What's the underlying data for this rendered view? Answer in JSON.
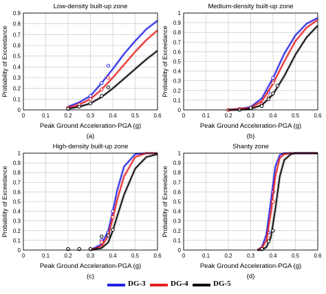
{
  "chart_data": [
    {
      "type": "line",
      "title": "Low-density built-up zone",
      "xlabel": "Peak Ground Acceleration-PGA (g)",
      "ylabel": "Probability of Exceedance",
      "panel_label": "(a)",
      "xlim": [
        0,
        0.6
      ],
      "ylim": [
        0,
        0.9
      ],
      "xticks": [
        "0",
        "0.1",
        "0.2",
        "0.3",
        "0.4",
        "0.5",
        "0.6"
      ],
      "yticks": [
        "0",
        "0.1",
        "0.2",
        "0.3",
        "0.4",
        "0.5",
        "0.6",
        "0.7",
        "0.8",
        "0.9"
      ],
      "grid": true,
      "x": [
        0.2,
        0.25,
        0.3,
        0.35,
        0.4,
        0.45,
        0.5,
        0.55,
        0.6
      ],
      "series": [
        {
          "name": "DG-3",
          "color": "#1f1fe6",
          "values": [
            0.03,
            0.07,
            0.13,
            0.25,
            0.38,
            0.52,
            0.64,
            0.75,
            0.83
          ],
          "points": [
            [
              0.2,
              0.02
            ],
            [
              0.25,
              0.05
            ],
            [
              0.3,
              0.13
            ],
            [
              0.35,
              0.25
            ],
            [
              0.38,
              0.41
            ]
          ]
        },
        {
          "name": "DG-4",
          "color": "#e81e1e",
          "values": [
            0.02,
            0.05,
            0.1,
            0.19,
            0.3,
            0.42,
            0.54,
            0.65,
            0.74
          ],
          "points": [
            [
              0.2,
              0.02
            ],
            [
              0.25,
              0.05
            ],
            [
              0.3,
              0.1
            ],
            [
              0.35,
              0.19
            ],
            [
              0.38,
              0.3
            ]
          ]
        },
        {
          "name": "DG-5",
          "color": "#000000",
          "values": [
            0.01,
            0.03,
            0.06,
            0.12,
            0.2,
            0.29,
            0.38,
            0.47,
            0.55
          ],
          "points": [
            [
              0.2,
              0.01
            ],
            [
              0.25,
              0.03
            ],
            [
              0.3,
              0.06
            ],
            [
              0.35,
              0.13
            ],
            [
              0.38,
              0.21
            ]
          ]
        }
      ]
    },
    {
      "type": "line",
      "title": "Medium-density built-up zone",
      "xlabel": "Peak Ground Acceleration-PGA (g)",
      "ylabel": "Probability of Exceedance",
      "panel_label": "(b)",
      "xlim": [
        0,
        0.6
      ],
      "ylim": [
        0,
        1
      ],
      "xticks": [
        "0",
        "0.1",
        "0.2",
        "0.3",
        "0.4",
        "0.5",
        "0.6"
      ],
      "yticks": [
        "0",
        "0.1",
        "0.2",
        "0.3",
        "0.4",
        "0.5",
        "0.6",
        "0.7",
        "0.8",
        "0.9",
        "1"
      ],
      "grid": true,
      "x": [
        0.2,
        0.25,
        0.3,
        0.35,
        0.4,
        0.45,
        0.5,
        0.55,
        0.6
      ],
      "series": [
        {
          "name": "DG-3",
          "color": "#1f1fe6",
          "values": [
            0.0,
            0.01,
            0.03,
            0.12,
            0.33,
            0.58,
            0.77,
            0.89,
            0.95
          ],
          "points": [
            [
              0.2,
              0.0
            ],
            [
              0.25,
              0.01
            ],
            [
              0.3,
              0.02
            ],
            [
              0.35,
              0.06
            ],
            [
              0.38,
              0.18
            ],
            [
              0.4,
              0.33
            ]
          ]
        },
        {
          "name": "DG-4",
          "color": "#e81e1e",
          "values": [
            0.0,
            0.01,
            0.02,
            0.09,
            0.27,
            0.5,
            0.71,
            0.85,
            0.93
          ],
          "points": [
            [
              0.2,
              0.0
            ],
            [
              0.25,
              0.01
            ],
            [
              0.3,
              0.02
            ],
            [
              0.35,
              0.06
            ],
            [
              0.38,
              0.13
            ],
            [
              0.4,
              0.28
            ]
          ]
        },
        {
          "name": "DG-5",
          "color": "#000000",
          "values": [
            0.0,
            0.0,
            0.01,
            0.05,
            0.16,
            0.35,
            0.57,
            0.75,
            0.87
          ],
          "points": [
            [
              0.25,
              0.0
            ],
            [
              0.3,
              0.02
            ],
            [
              0.35,
              0.04
            ],
            [
              0.38,
              0.11
            ],
            [
              0.4,
              0.17
            ],
            [
              0.42,
              0.25
            ]
          ]
        }
      ]
    },
    {
      "type": "line",
      "title": "High-density built-up zone",
      "xlabel": "Peak Ground Acceleration-PGA (g)",
      "ylabel": "Probability of Exceedance",
      "panel_label": "(c)",
      "xlim": [
        0,
        0.6
      ],
      "ylim": [
        0,
        1
      ],
      "xticks": [
        "0",
        "0.1",
        "0.2",
        "0.3",
        "0.4",
        "0.5",
        "0.6"
      ],
      "yticks": [
        "0",
        "0.1",
        "0.2",
        "0.3",
        "0.4",
        "0.5",
        "0.6",
        "0.7",
        "0.8",
        "0.9",
        "1"
      ],
      "grid": true,
      "x": [
        0.3,
        0.35,
        0.38,
        0.4,
        0.42,
        0.45,
        0.5,
        0.55,
        0.6
      ],
      "series": [
        {
          "name": "DG-3",
          "color": "#1f1fe6",
          "values": [
            0.0,
            0.06,
            0.2,
            0.4,
            0.62,
            0.86,
            0.99,
            1.0,
            1.0
          ],
          "points": [
            [
              0.2,
              0.01
            ],
            [
              0.25,
              0.01
            ],
            [
              0.3,
              0.01
            ],
            [
              0.35,
              0.1
            ],
            [
              0.38,
              0.18
            ],
            [
              0.4,
              0.4
            ]
          ]
        },
        {
          "name": "DG-4",
          "color": "#e81e1e",
          "values": [
            0.0,
            0.04,
            0.15,
            0.33,
            0.52,
            0.76,
            0.96,
            1.0,
            1.0
          ],
          "points": [
            [
              0.2,
              0.01
            ],
            [
              0.25,
              0.01
            ],
            [
              0.3,
              0.01
            ],
            [
              0.35,
              0.08
            ],
            [
              0.38,
              0.15
            ],
            [
              0.4,
              0.34
            ]
          ]
        },
        {
          "name": "DG-5",
          "color": "#000000",
          "values": [
            0.0,
            0.02,
            0.08,
            0.2,
            0.35,
            0.57,
            0.84,
            0.96,
            0.99
          ],
          "points": [
            [
              0.2,
              0.01
            ],
            [
              0.25,
              0.01
            ],
            [
              0.3,
              0.01
            ],
            [
              0.35,
              0.14
            ],
            [
              0.38,
              0.15
            ],
            [
              0.4,
              0.21
            ]
          ]
        }
      ]
    },
    {
      "type": "line",
      "title": "Shanty zone",
      "xlabel": "Peak Ground Acceleration-PGA (g)",
      "ylabel": "Probability of Exceedance",
      "panel_label": "(d)",
      "xlim": [
        0,
        0.6
      ],
      "ylim": [
        0,
        1
      ],
      "xticks": [
        "0",
        "0.1",
        "0.2",
        "0.3",
        "0.4",
        "0.5",
        "0.6"
      ],
      "yticks": [
        "0",
        "0.1",
        "0.2",
        "0.3",
        "0.4",
        "0.5",
        "0.6",
        "0.7",
        "0.8",
        "0.9",
        "1"
      ],
      "grid": true,
      "x": [
        0.33,
        0.35,
        0.37,
        0.39,
        0.41,
        0.43,
        0.45,
        0.48,
        0.5,
        0.55,
        0.6
      ],
      "series": [
        {
          "name": "DG-3",
          "color": "#1f1fe6",
          "values": [
            0.0,
            0.03,
            0.16,
            0.5,
            0.86,
            0.98,
            1.0,
            1.0,
            1.0,
            1.0,
            1.0
          ],
          "points": [
            [
              0.35,
              0.02
            ],
            [
              0.38,
              0.18
            ],
            [
              0.4,
              0.6
            ]
          ]
        },
        {
          "name": "DG-4",
          "color": "#e81e1e",
          "values": [
            0.0,
            0.02,
            0.1,
            0.38,
            0.76,
            0.95,
            0.99,
            1.0,
            1.0,
            1.0,
            1.0
          ],
          "points": [
            [
              0.35,
              0.02
            ],
            [
              0.38,
              0.12
            ],
            [
              0.4,
              0.5
            ]
          ]
        },
        {
          "name": "DG-5",
          "color": "#000000",
          "values": [
            0.0,
            0.0,
            0.03,
            0.13,
            0.42,
            0.76,
            0.93,
            0.99,
            1.0,
            1.0,
            1.0
          ],
          "points": [
            [
              0.35,
              0.01
            ],
            [
              0.38,
              0.09
            ],
            [
              0.4,
              0.2
            ]
          ]
        }
      ]
    }
  ],
  "legend": [
    {
      "label": "DG-3",
      "color": "#1f1fe6"
    },
    {
      "label": "DG-4",
      "color": "#e81e1e"
    },
    {
      "label": "DG-5",
      "color": "#000000"
    }
  ]
}
